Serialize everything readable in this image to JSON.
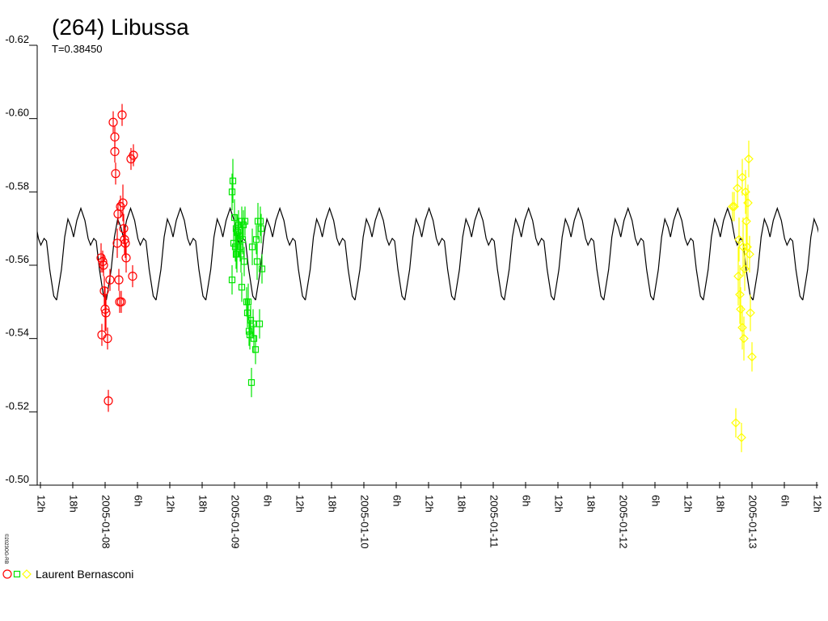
{
  "chart_data": {
    "type": "lightcurve",
    "title": "(264) Libussa",
    "subtitle": "T=0.38450",
    "credit": "©2023OG-RB",
    "legend": "Laurent Bernasconi",
    "xlim": [
      "2005-01-07T11:24",
      "2005-01-13T12:18"
    ],
    "xticks": [
      {
        "value": "2005-01-07T12:00",
        "label": "12h"
      },
      {
        "value": "2005-01-07T18:00",
        "label": "18h"
      },
      {
        "value": "2005-01-08T00:00",
        "label": "2005-01-08"
      },
      {
        "value": "2005-01-08T06:00",
        "label": "6h"
      },
      {
        "value": "2005-01-08T12:00",
        "label": "12h"
      },
      {
        "value": "2005-01-08T18:00",
        "label": "18h"
      },
      {
        "value": "2005-01-09T00:00",
        "label": "2005-01-09"
      },
      {
        "value": "2005-01-09T06:00",
        "label": "6h"
      },
      {
        "value": "2005-01-09T12:00",
        "label": "12h"
      },
      {
        "value": "2005-01-09T18:00",
        "label": "18h"
      },
      {
        "value": "2005-01-10T00:00",
        "label": "2005-01-10"
      },
      {
        "value": "2005-01-10T06:00",
        "label": "6h"
      },
      {
        "value": "2005-01-10T12:00",
        "label": "12h"
      },
      {
        "value": "2005-01-10T18:00",
        "label": "18h"
      },
      {
        "value": "2005-01-11T00:00",
        "label": "2005-01-11"
      },
      {
        "value": "2005-01-11T06:00",
        "label": "6h"
      },
      {
        "value": "2005-01-11T12:00",
        "label": "12h"
      },
      {
        "value": "2005-01-11T18:00",
        "label": "18h"
      },
      {
        "value": "2005-01-12T00:00",
        "label": "2005-01-12"
      },
      {
        "value": "2005-01-12T06:00",
        "label": "6h"
      },
      {
        "value": "2005-01-12T12:00",
        "label": "12h"
      },
      {
        "value": "2005-01-12T18:00",
        "label": "18h"
      },
      {
        "value": "2005-01-13T00:00",
        "label": "2005-01-13"
      },
      {
        "value": "2005-01-13T06:00",
        "label": "6h"
      },
      {
        "value": "2005-01-13T12:00",
        "label": "12h"
      }
    ],
    "ylim": [
      -0.5,
      -0.62
    ],
    "yticks": [
      -0.62,
      {
        "value": -0.6,
        "label": "-0.60"
      },
      -0.58,
      -0.56,
      -0.54,
      -0.52,
      {
        "value": -0.5,
        "label": "-0.50"
      }
    ],
    "fit": {
      "period": 0.3845,
      "color": "#000000",
      "x": [
        "2005-01-07T15:00",
        "2005-01-07T15:54",
        "2005-01-07T16:30",
        "2005-01-07T17:06",
        "2005-01-07T17:42",
        "2005-01-07T18:09",
        "2005-01-07T18:45",
        "2005-01-07T19:30",
        "2005-01-07T20:15",
        "2005-01-07T20:51",
        "2005-01-07T21:18",
        "2005-01-07T21:54",
        "2005-01-07T22:21",
        "2005-01-07T22:57",
        "2005-01-07T23:42"
      ],
      "values": [
        -0.5505,
        -0.5588,
        -0.5677,
        -0.5726,
        -0.5704,
        -0.5677,
        -0.5722,
        -0.5755,
        -0.5722,
        -0.5673,
        -0.5655,
        -0.5673,
        -0.5666,
        -0.5588,
        -0.5516
      ]
    },
    "series": [
      {
        "color": "#ff0000",
        "marker": "circle",
        "x": [
          "2005-01-07T23:15",
          "2005-01-07T23:33",
          "2005-01-07T23:42",
          "2005-01-07T23:51",
          "2005-01-08T00:00",
          "2005-01-08T00:09",
          "2005-01-07T23:24",
          "2005-01-08T00:27",
          "2005-01-08T00:36",
          "2005-01-08T00:54",
          "2005-01-08T01:30",
          "2005-01-08T01:48",
          "2005-01-08T01:48",
          "2005-01-08T01:57",
          "2005-01-08T02:15",
          "2005-01-08T02:24",
          "2005-01-08T02:33",
          "2005-01-08T02:42",
          "2005-01-08T02:51",
          "2005-01-08T03:00",
          "2005-01-08T03:09",
          "2005-01-08T03:18",
          "2005-01-08T03:27",
          "2005-01-08T03:36",
          "2005-01-08T03:45",
          "2005-01-08T03:54",
          "2005-01-08T04:48",
          "2005-01-08T05:15",
          "2005-01-08T05:06"
        ],
        "values": [
          -0.562,
          -0.561,
          -0.56,
          -0.553,
          -0.548,
          -0.547,
          -0.541,
          -0.54,
          -0.523,
          -0.556,
          -0.599,
          -0.595,
          -0.591,
          -0.585,
          -0.566,
          -0.574,
          -0.556,
          -0.55,
          -0.576,
          -0.55,
          -0.601,
          -0.577,
          -0.57,
          -0.567,
          -0.566,
          -0.562,
          -0.589,
          -0.59,
          -0.557
        ],
        "errors": [
          0.004,
          0.003,
          0.003,
          0.004,
          0.006,
          0.005,
          0.003,
          0.003,
          0.003,
          0.003,
          0.003,
          0.003,
          0.003,
          0.003,
          0.004,
          0.003,
          0.003,
          0.003,
          0.003,
          0.003,
          0.003,
          0.005,
          0.004,
          0.004,
          0.004,
          0.004,
          0.003,
          0.003,
          0.003
        ]
      },
      {
        "color": "#00e600",
        "marker": "square",
        "x": [
          "2005-01-08T23:33",
          "2005-01-08T23:42",
          "2005-01-08T23:33",
          "2005-01-08T23:51",
          "2005-01-09T00:00",
          "2005-01-09T00:09",
          "2005-01-09T00:18",
          "2005-01-09T00:27",
          "2005-01-09T00:18",
          "2005-01-09T00:36",
          "2005-01-09T00:45",
          "2005-01-09T00:54",
          "2005-01-09T01:03",
          "2005-01-09T01:12",
          "2005-01-09T01:21",
          "2005-01-09T01:30",
          "2005-01-09T01:39",
          "2005-01-09T01:48",
          "2005-01-09T01:57",
          "2005-01-09T01:21",
          "2005-01-09T02:15",
          "2005-01-09T02:24",
          "2005-01-09T02:33",
          "2005-01-09T02:42",
          "2005-01-09T02:51",
          "2005-01-09T03:00",
          "2005-01-09T03:09",
          "2005-01-09T03:27",
          "2005-01-09T03:36",
          "2005-01-09T03:54",
          "2005-01-09T04:03",
          "2005-01-09T04:12",
          "2005-01-09T04:21",
          "2005-01-09T04:39",
          "2005-01-09T04:48",
          "2005-01-09T04:57",
          "2005-01-09T05:06",
          "2005-01-09T03:18"
        ],
        "values": [
          -0.58,
          -0.583,
          -0.556,
          -0.566,
          -0.573,
          -0.565,
          -0.563,
          -0.563,
          -0.57,
          -0.569,
          -0.571,
          -0.568,
          -0.565,
          -0.563,
          -0.572,
          -0.567,
          -0.571,
          -0.561,
          -0.572,
          -0.554,
          -0.55,
          -0.547,
          -0.55,
          -0.542,
          -0.541,
          -0.545,
          -0.528,
          -0.544,
          -0.54,
          -0.537,
          -0.567,
          -0.561,
          -0.572,
          -0.544,
          -0.572,
          -0.57,
          -0.559,
          -0.565
        ],
        "errors": [
          0.005,
          0.006,
          0.004,
          0.004,
          0.005,
          0.004,
          0.004,
          0.005,
          0.004,
          0.004,
          0.004,
          0.004,
          0.004,
          0.005,
          0.004,
          0.004,
          0.004,
          0.004,
          0.004,
          0.004,
          0.004,
          0.004,
          0.005,
          0.004,
          0.004,
          0.004,
          0.004,
          0.004,
          0.004,
          0.004,
          0.004,
          0.005,
          0.005,
          0.004,
          0.004,
          0.004,
          0.004,
          0.005
        ]
      },
      {
        "color": "#ffff00",
        "marker": "diamond",
        "x": [
          "2005-01-12T20:24",
          "2005-01-12T20:42",
          "2005-01-12T21:00",
          "2005-01-12T21:18",
          "2005-01-12T21:27",
          "2005-01-12T21:36",
          "2005-01-12T21:45",
          "2005-01-12T21:54",
          "2005-01-12T22:03",
          "2005-01-12T22:12",
          "2005-01-12T22:12",
          "2005-01-12T22:21",
          "2005-01-12T22:30",
          "2005-01-12T22:39",
          "2005-01-12T22:48",
          "2005-01-12T22:57",
          "2005-01-12T23:06",
          "2005-01-12T23:15",
          "2005-01-12T23:24",
          "2005-01-12T23:33",
          "2005-01-12T23:42",
          "2005-01-13T00:00"
        ],
        "values": [
          -0.576,
          -0.576,
          -0.517,
          -0.581,
          -0.557,
          -0.567,
          -0.552,
          -0.548,
          -0.513,
          -0.543,
          -0.584,
          -0.565,
          -0.54,
          -0.559,
          -0.58,
          -0.572,
          -0.565,
          -0.577,
          -0.589,
          -0.563,
          -0.547,
          -0.535
        ],
        "errors": [
          0.004,
          0.004,
          0.004,
          0.005,
          0.008,
          0.006,
          0.008,
          0.006,
          0.004,
          0.006,
          0.005,
          0.008,
          0.006,
          0.006,
          0.006,
          0.008,
          0.006,
          0.005,
          0.005,
          0.005,
          0.005,
          0.004
        ]
      }
    ]
  }
}
